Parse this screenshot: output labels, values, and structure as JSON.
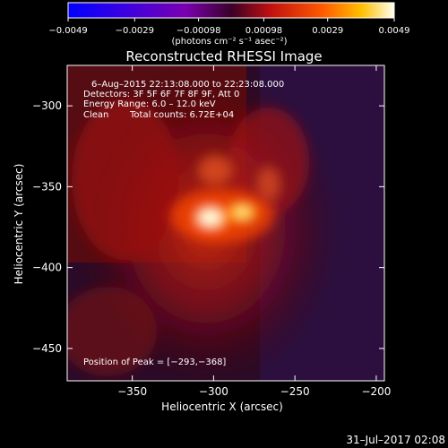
{
  "chart_data": {
    "type": "heatmap",
    "title": "Reconstructed RHESSI Image",
    "xlabel": "Heliocentric X (arcsec)",
    "ylabel": "Heliocentric Y (arcsec)",
    "xlim": [
      -390,
      -195
    ],
    "ylim": [
      -470,
      -275
    ],
    "x_ticks": [
      -350,
      -300,
      -250,
      -200
    ],
    "x_tick_labels": [
      "−350",
      "−300",
      "−250",
      "−200"
    ],
    "y_ticks": [
      -300,
      -350,
      -400,
      -450
    ],
    "y_tick_labels": [
      "−300",
      "−350",
      "−400",
      "−450"
    ],
    "colorbar": {
      "range": [
        -0.0049,
        0.0049
      ],
      "ticks": [
        -0.0049,
        -0.0029,
        -0.00098,
        0.00098,
        0.0029,
        0.0049
      ],
      "tick_labels": [
        "−0.0049",
        "−0.0029",
        "−0.00098",
        "0.00098",
        "0.0029",
        "0.0049"
      ],
      "unit_label": "(photons cm⁻² s⁻¹ asec⁻²)"
    },
    "annotations": {
      "time_range": "6–Aug–2015 22:13:08.000 to 22:23:08.000",
      "detectors": "Detectors: 3F 5F 6F 7F 8F 9F, Att 0",
      "energy": "Energy Range: 6.0 – 12.0 keV",
      "clean": "Clean",
      "counts": "Total counts: 6.72E+04",
      "peak": "Position of Peak = [−293,−368]"
    },
    "peak": [
      -293,
      -368
    ]
  },
  "footer": {
    "timestamp": "31–Jul–2017 02:08"
  },
  "colors": {
    "background": "#000000",
    "text": "#ffffff"
  }
}
